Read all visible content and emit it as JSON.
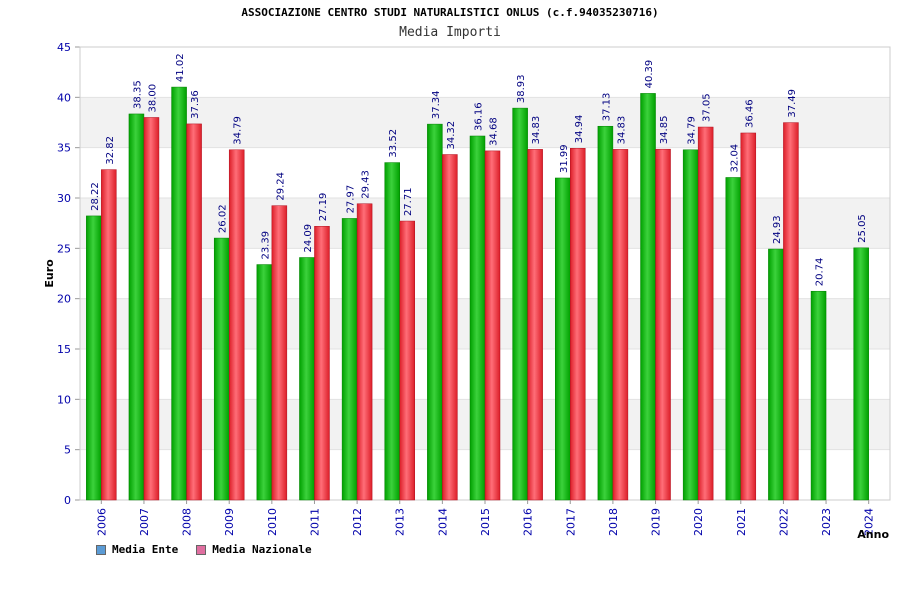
{
  "chart_data": {
    "type": "bar",
    "title": "ASSOCIAZIONE CENTRO STUDI NATURALISTICI ONLUS (c.f.94035230716)",
    "subtitle": "Media Importi",
    "xlabel": "Anno",
    "ylabel": "Euro",
    "ylim": [
      0,
      45
    ],
    "yticks": [
      "0",
      "5",
      "10",
      "15",
      "20",
      "25",
      "30",
      "35",
      "40",
      "45"
    ],
    "categories": [
      "2006",
      "2007",
      "2008",
      "2009",
      "2010",
      "2011",
      "2012",
      "2013",
      "2014",
      "2015",
      "2016",
      "2017",
      "2018",
      "2019",
      "2020",
      "2021",
      "2022",
      "2023",
      "2024"
    ],
    "series": [
      {
        "name": "Media Ente",
        "values": [
          28.22,
          38.35,
          41.02,
          26.02,
          23.39,
          24.09,
          27.97,
          33.52,
          37.34,
          36.16,
          38.93,
          31.99,
          37.13,
          40.39,
          34.79,
          32.04,
          24.93,
          20.74,
          25.05
        ],
        "labels": [
          "28.22",
          "38.35",
          "41.02",
          "26.02",
          "23.39",
          "24.09",
          "27.97",
          "33.52",
          "37.34",
          "36.16",
          "38.93",
          "31.99",
          "37.13",
          "40.39",
          "34.79",
          "32.04",
          "24.93",
          "20.74",
          "25.05"
        ]
      },
      {
        "name": "Media Nazionale",
        "values": [
          32.82,
          38.0,
          37.36,
          34.79,
          29.24,
          27.19,
          29.43,
          27.71,
          34.32,
          34.68,
          34.83,
          34.94,
          34.83,
          34.85,
          37.05,
          36.46,
          37.49,
          null,
          null
        ],
        "labels": [
          "32.82",
          "38.00",
          "37.36",
          "34.79",
          "29.24",
          "27.19",
          "29.43",
          "27.71",
          "34.32",
          "34.68",
          "34.83",
          "34.94",
          "34.83",
          "34.85",
          "37.05",
          "36.46",
          "37.49",
          null,
          null
        ]
      }
    ],
    "legend": [
      {
        "name": "Media Ente",
        "color": "#5b9bd5"
      },
      {
        "name": "Media Nazionale",
        "color": "#e06fa0"
      }
    ],
    "colors": {
      "ente_dark": "#00a000",
      "ente_light": "#3cd23c",
      "naz_dark": "#dc1e28",
      "naz_light": "#ff6e78",
      "band": "#f2f2f2",
      "axis_text": "#0000aa",
      "label_text": "#000080"
    },
    "grid": true,
    "legend_position": "bottom-left"
  }
}
